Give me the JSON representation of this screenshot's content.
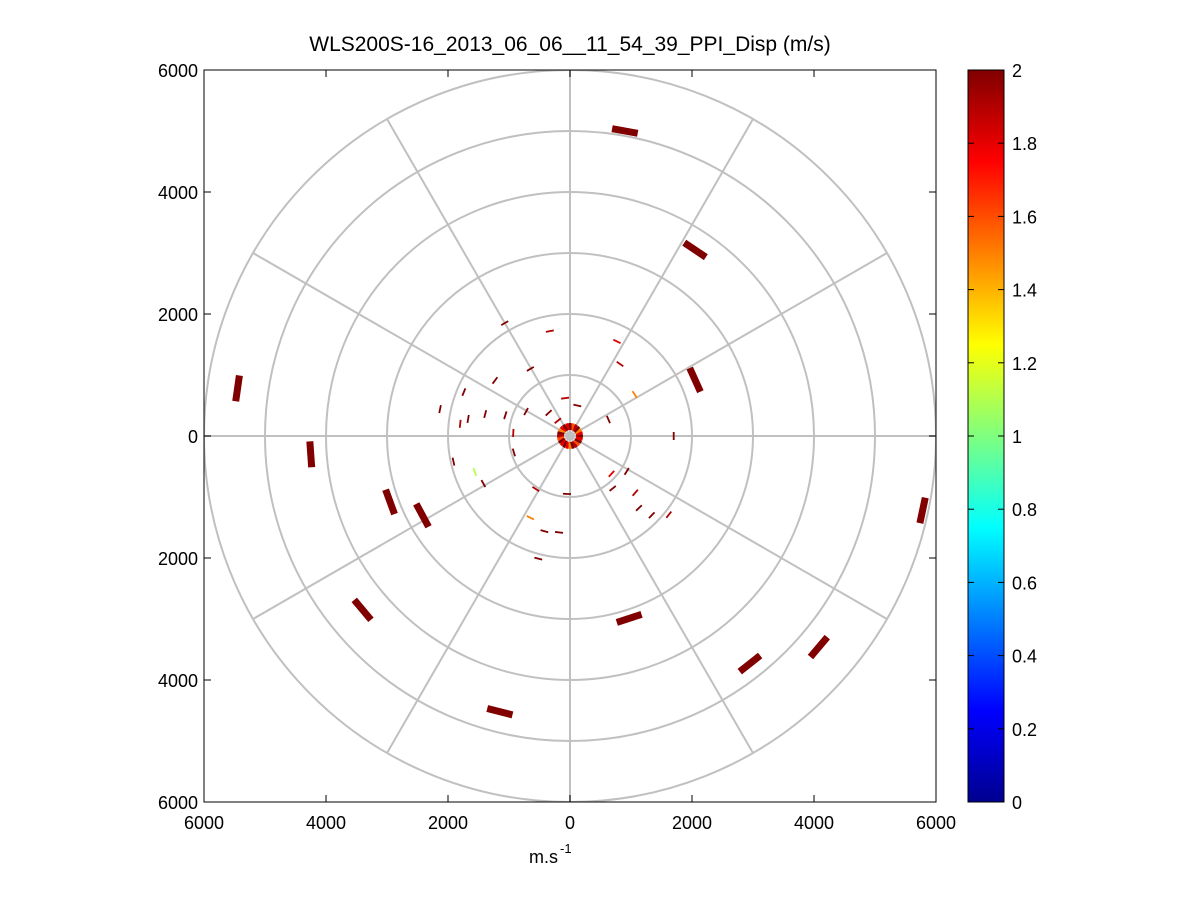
{
  "chart_data": {
    "type": "polar-scatter",
    "title": "WLS200S-16_2013_06_06__11_54_39_PPI_Disp (m/s)",
    "xlabel": "m.s",
    "xlabel_superscript": "-1",
    "ylabel": "",
    "xlim": [
      -6000,
      6000
    ],
    "ylim": [
      -6000,
      6000
    ],
    "x_ticks": [
      "6000",
      "4000",
      "2000",
      "0",
      "2000",
      "4000",
      "6000"
    ],
    "y_ticks": [
      "6000",
      "4000",
      "2000",
      "0",
      "2000",
      "4000",
      "6000"
    ],
    "range_rings": [
      1000,
      2000,
      3000,
      4000,
      5000,
      6000
    ],
    "spoke_step_deg": 30,
    "grid": true,
    "colorbar": {
      "colormap": "jet",
      "min": 0,
      "max": 2,
      "ticks": [
        "0",
        "0.2",
        "0.4",
        "0.6",
        "0.8",
        "1",
        "1.2",
        "1.4",
        "1.6",
        "1.8",
        "2"
      ]
    },
    "points": [
      {
        "x": 900,
        "y": 5000,
        "v": 2,
        "w": "thick"
      },
      {
        "x": 2050,
        "y": 3050,
        "v": 2,
        "w": "thick"
      },
      {
        "x": 2050,
        "y": 920,
        "v": 2,
        "w": "thick"
      },
      {
        "x": -5450,
        "y": 780,
        "v": 2,
        "w": "thick"
      },
      {
        "x": -4250,
        "y": -300,
        "v": 2,
        "w": "thick"
      },
      {
        "x": -2950,
        "y": -1080,
        "v": 2,
        "w": "thick"
      },
      {
        "x": -2420,
        "y": -1300,
        "v": 2,
        "w": "thick"
      },
      {
        "x": -3400,
        "y": -2850,
        "v": 2,
        "w": "thick"
      },
      {
        "x": -1150,
        "y": -4520,
        "v": 2,
        "w": "thick"
      },
      {
        "x": 970,
        "y": -2990,
        "v": 2,
        "w": "thick"
      },
      {
        "x": 2950,
        "y": -3730,
        "v": 2,
        "w": "thick"
      },
      {
        "x": 4080,
        "y": -3460,
        "v": 2,
        "w": "thick"
      },
      {
        "x": 5780,
        "y": -1220,
        "v": 2,
        "w": "thick"
      },
      {
        "x": -1070,
        "y": 1850,
        "v": 2,
        "w": "thin"
      },
      {
        "x": -330,
        "y": 1720,
        "v": 1.9,
        "w": "thin"
      },
      {
        "x": 770,
        "y": 1550,
        "v": 1.8,
        "w": "thin"
      },
      {
        "x": 820,
        "y": 1180,
        "v": 1.9,
        "w": "thin"
      },
      {
        "x": 1060,
        "y": 680,
        "v": 1.5,
        "w": "thin"
      },
      {
        "x": -1230,
        "y": 910,
        "v": 2,
        "w": "thin"
      },
      {
        "x": -650,
        "y": 1100,
        "v": 2,
        "w": "thin"
      },
      {
        "x": -1740,
        "y": 720,
        "v": 2,
        "w": "thin"
      },
      {
        "x": -2130,
        "y": 440,
        "v": 2,
        "w": "thin"
      },
      {
        "x": -1390,
        "y": 360,
        "v": 2,
        "w": "thin"
      },
      {
        "x": -1670,
        "y": 280,
        "v": 2,
        "w": "thin"
      },
      {
        "x": -1800,
        "y": 200,
        "v": 1.9,
        "w": "thin"
      },
      {
        "x": -1060,
        "y": 340,
        "v": 2,
        "w": "thin"
      },
      {
        "x": -720,
        "y": 400,
        "v": 2,
        "w": "thin"
      },
      {
        "x": -930,
        "y": 50,
        "v": 1.9,
        "w": "thin"
      },
      {
        "x": -350,
        "y": 380,
        "v": 2,
        "w": "thin"
      },
      {
        "x": -80,
        "y": 620,
        "v": 1.9,
        "w": "thin"
      },
      {
        "x": 120,
        "y": 500,
        "v": 2,
        "w": "thin"
      },
      {
        "x": -200,
        "y": 250,
        "v": 1.9,
        "w": "thin"
      },
      {
        "x": 630,
        "y": 270,
        "v": 2,
        "w": "thin"
      },
      {
        "x": 1700,
        "y": 0,
        "v": 2,
        "w": "thin"
      },
      {
        "x": -1910,
        "y": -420,
        "v": 2,
        "w": "thin"
      },
      {
        "x": -1560,
        "y": -590,
        "v": 1.1,
        "w": "thin"
      },
      {
        "x": -1420,
        "y": -780,
        "v": 2,
        "w": "thin"
      },
      {
        "x": -920,
        "y": -270,
        "v": 2,
        "w": "thin"
      },
      {
        "x": -560,
        "y": -870,
        "v": 1.9,
        "w": "thin"
      },
      {
        "x": -50,
        "y": -950,
        "v": 2,
        "w": "thin"
      },
      {
        "x": 680,
        "y": -620,
        "v": 1.8,
        "w": "thin"
      },
      {
        "x": 930,
        "y": -580,
        "v": 2,
        "w": "thin"
      },
      {
        "x": 700,
        "y": -860,
        "v": 2,
        "w": "thin"
      },
      {
        "x": 1070,
        "y": -930,
        "v": 1.9,
        "w": "thin"
      },
      {
        "x": 1130,
        "y": -1180,
        "v": 2,
        "w": "thin"
      },
      {
        "x": 1340,
        "y": -1300,
        "v": 2,
        "w": "thin"
      },
      {
        "x": 1620,
        "y": -1290,
        "v": 1.9,
        "w": "thin"
      },
      {
        "x": -650,
        "y": -1340,
        "v": 1.5,
        "w": "thin"
      },
      {
        "x": -420,
        "y": -1560,
        "v": 2,
        "w": "thin"
      },
      {
        "x": -180,
        "y": -1580,
        "v": 2,
        "w": "thin"
      },
      {
        "x": -520,
        "y": -2010,
        "v": 2,
        "w": "thin"
      }
    ]
  }
}
